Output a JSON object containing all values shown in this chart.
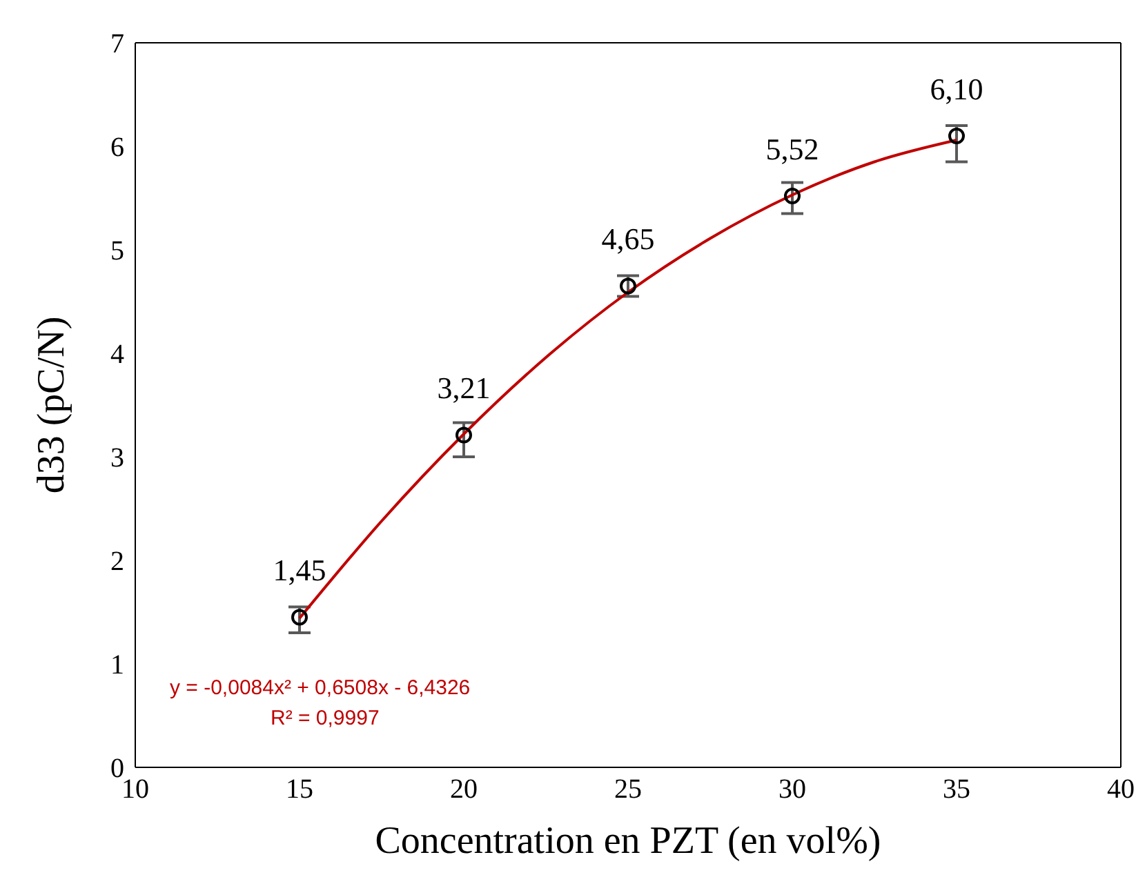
{
  "chart_data": {
    "type": "scatter",
    "xlabel": "Concentration en PZT (en vol%)",
    "ylabel": "d33 (pC/N)",
    "xlim": [
      10,
      40
    ],
    "xticks": [
      10,
      15,
      20,
      25,
      30,
      35,
      40
    ],
    "ylim": [
      0,
      7
    ],
    "yticks": [
      0,
      1,
      2,
      3,
      4,
      5,
      6,
      7
    ],
    "series": [
      {
        "color": "#000000",
        "marker": "circle",
        "x": [
          15,
          20,
          25,
          30,
          35
        ],
        "values": [
          1.45,
          3.21,
          4.65,
          5.52,
          6.1
        ],
        "errors": [
          [
            1.3,
            1.55
          ],
          [
            3.0,
            3.33
          ],
          [
            4.55,
            4.75
          ],
          [
            5.35,
            5.65
          ],
          [
            5.85,
            6.2
          ]
        ],
        "value_labels": [
          "1,45",
          "3,21",
          "4,65",
          "5,52",
          "6,10"
        ]
      },
      {
        "type": "line",
        "color": "#c00000",
        "marker": "none",
        "line_style": "solid",
        "x": [
          15,
          17.5,
          20,
          22.5,
          25,
          27.5,
          30,
          32.5,
          35
        ],
        "values": [
          1.44,
          2.38,
          3.22,
          3.96,
          4.59,
          5.11,
          5.53,
          5.85,
          6.06
        ]
      }
    ],
    "annotations": [
      "y = -0,0084x² + 0,6508x - 6,4326",
      "R² = 0,9997"
    ]
  }
}
